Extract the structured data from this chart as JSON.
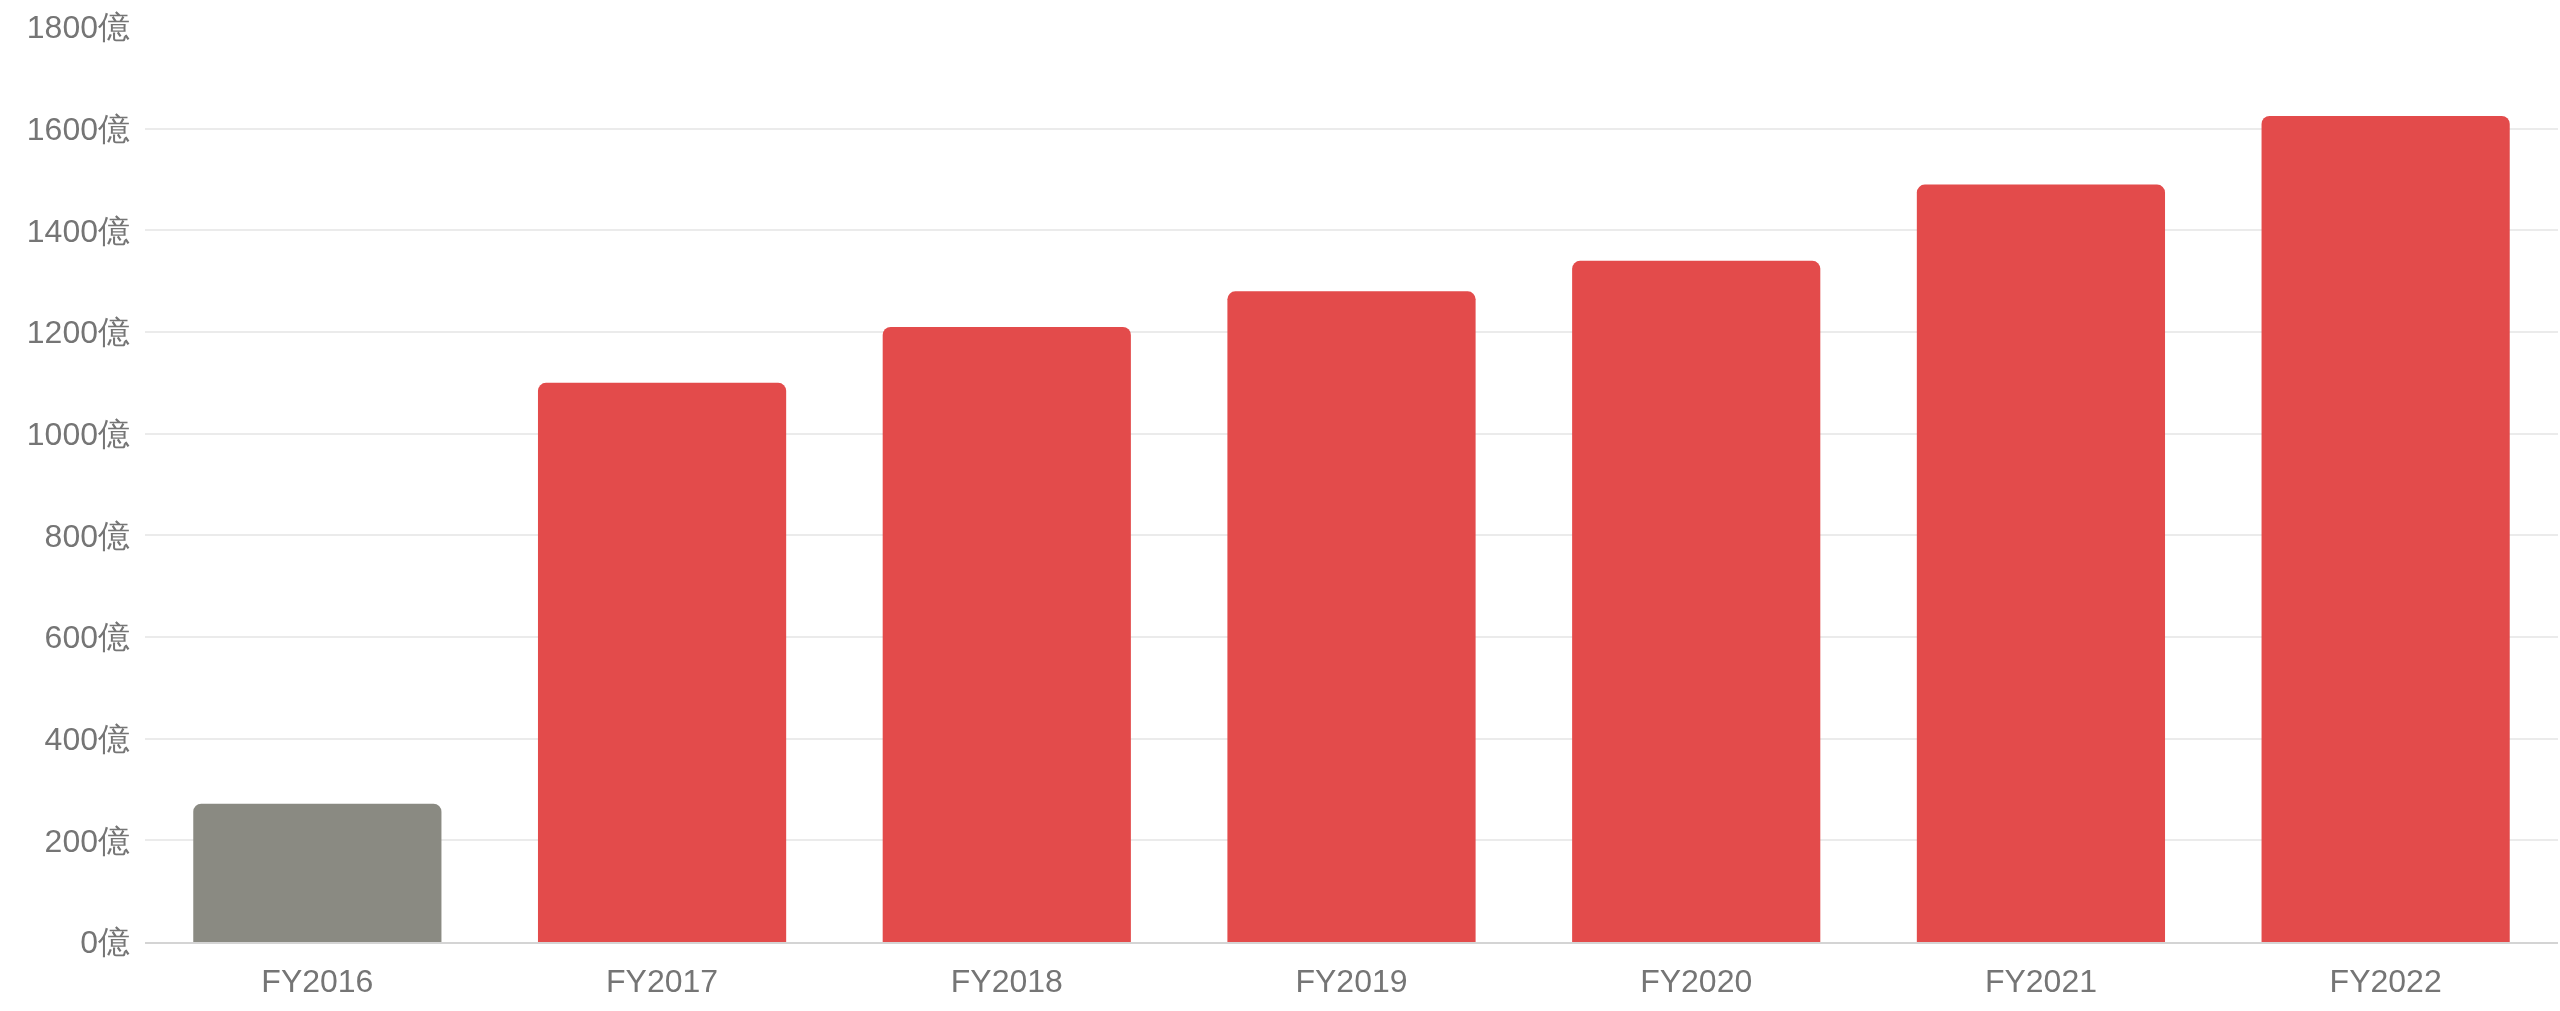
{
  "chart_data": {
    "type": "bar",
    "categories": [
      "FY2016",
      "FY2017",
      "FY2018",
      "FY2019",
      "FY2020",
      "FY2021",
      "FY2022"
    ],
    "values": [
      272,
      1100,
      1210,
      1280,
      1340,
      1490,
      1625
    ],
    "colors": [
      "#8a8a82",
      "#e34b4b",
      "#e34b4b",
      "#e34b4b",
      "#e34b4b",
      "#e34b4b",
      "#e34b4b"
    ],
    "ylim": [
      0,
      1800
    ],
    "yticks": [
      {
        "value": 0,
        "label": "0億"
      },
      {
        "value": 200,
        "label": "200億"
      },
      {
        "value": 400,
        "label": "400億"
      },
      {
        "value": 600,
        "label": "600億"
      },
      {
        "value": 800,
        "label": "800億"
      },
      {
        "value": 1000,
        "label": "1000億"
      },
      {
        "value": 1200,
        "label": "1200億"
      },
      {
        "value": 1400,
        "label": "1400億"
      },
      {
        "value": 1600,
        "label": "1600億"
      },
      {
        "value": 1800,
        "label": "1800億"
      }
    ],
    "grid": "y"
  }
}
